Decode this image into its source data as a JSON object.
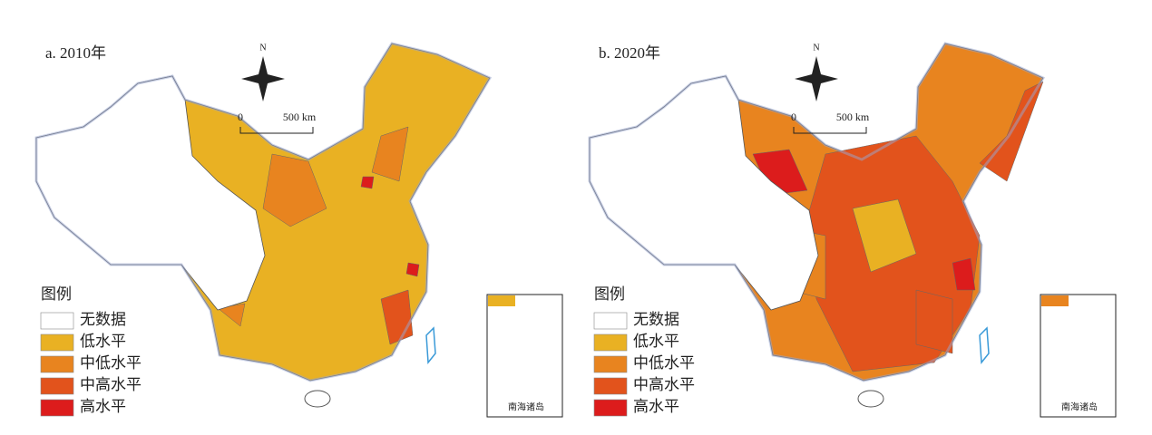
{
  "panels": [
    {
      "title": "a. 2010年",
      "north": "N",
      "scale_start": "0",
      "scale_end": "500 km",
      "legend_title": "图例",
      "inset_label": "南海诸岛"
    },
    {
      "title": "b. 2020年",
      "north": "N",
      "scale_start": "0",
      "scale_end": "500 km",
      "legend_title": "图例",
      "inset_label": "南海诸岛"
    }
  ],
  "legend": [
    {
      "label": "无数据",
      "color": "#ffffff"
    },
    {
      "label": "低水平",
      "color": "#e9b123"
    },
    {
      "label": "中低水平",
      "color": "#e8841f"
    },
    {
      "label": "中高水平",
      "color": "#e2531c"
    },
    {
      "label": "高水平",
      "color": "#dc1c1c"
    }
  ]
}
